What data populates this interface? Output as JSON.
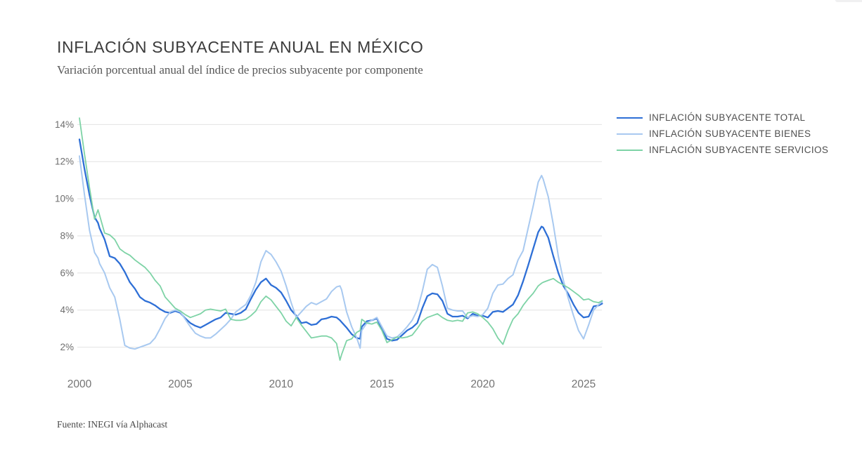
{
  "header": {
    "title": "INFLACIÓN SUBYACENTE ANUAL EN MÉXICO",
    "subtitle": "Variación porcentual anual del índice de precios subyacente por componente"
  },
  "footer": {
    "source": "Fuente: INEGI vía Alphacast"
  },
  "colors": {
    "background": "#ffffff",
    "grid": "#e2e2e2",
    "axis_text": "#6e6e6e"
  },
  "chart_data": {
    "type": "line",
    "title": "INFLACIÓN SUBYACENTE ANUAL EN MÉXICO",
    "xlabel": "",
    "ylabel": "",
    "grid": "horizontal-only",
    "legend_position": "right",
    "xlim": [
      2000,
      2026
    ],
    "ylim": [
      1,
      14.6
    ],
    "y_axis": {
      "ticks": [
        {
          "value": 2,
          "label": "2%"
        },
        {
          "value": 4,
          "label": "4%"
        },
        {
          "value": 6,
          "label": "6%"
        },
        {
          "value": 8,
          "label": "8%"
        },
        {
          "value": 10,
          "label": "10%"
        },
        {
          "value": 12,
          "label": "12%"
        },
        {
          "value": 14,
          "label": "14%"
        }
      ]
    },
    "x_axis": {
      "ticks": [
        {
          "value": 2000,
          "label": "2000"
        },
        {
          "value": 2005,
          "label": "2005"
        },
        {
          "value": 2010,
          "label": "2010"
        },
        {
          "value": 2015,
          "label": "2015"
        },
        {
          "value": 2020,
          "label": "2020"
        },
        {
          "value": 2025,
          "label": "2025"
        }
      ]
    },
    "x_years": [
      2000.0,
      2000.25,
      2000.5,
      2000.75,
      2000.92,
      2001.0,
      2001.25,
      2001.5,
      2001.75,
      2002.0,
      2002.25,
      2002.5,
      2002.75,
      2003.0,
      2003.25,
      2003.5,
      2003.75,
      2004.0,
      2004.25,
      2004.5,
      2004.75,
      2005.0,
      2005.25,
      2005.5,
      2005.75,
      2006.0,
      2006.25,
      2006.5,
      2006.75,
      2007.0,
      2007.25,
      2007.5,
      2007.75,
      2008.0,
      2008.25,
      2008.5,
      2008.75,
      2009.0,
      2009.25,
      2009.5,
      2009.75,
      2010.0,
      2010.25,
      2010.5,
      2010.75,
      2011.0,
      2011.25,
      2011.5,
      2011.75,
      2012.0,
      2012.25,
      2012.5,
      2012.75,
      2012.92,
      2013.0,
      2013.25,
      2013.5,
      2013.75,
      2013.92,
      2014.0,
      2014.25,
      2014.5,
      2014.75,
      2015.0,
      2015.25,
      2015.5,
      2015.75,
      2016.0,
      2016.25,
      2016.5,
      2016.75,
      2017.0,
      2017.25,
      2017.5,
      2017.75,
      2018.0,
      2018.25,
      2018.5,
      2018.75,
      2019.0,
      2019.25,
      2019.5,
      2019.75,
      2020.0,
      2020.25,
      2020.5,
      2020.75,
      2021.0,
      2021.25,
      2021.5,
      2021.75,
      2022.0,
      2022.25,
      2022.5,
      2022.75,
      2022.92,
      2023.0,
      2023.25,
      2023.5,
      2023.75,
      2024.0,
      2024.25,
      2024.5,
      2024.75,
      2025.0,
      2025.25,
      2025.5,
      2025.75,
      2025.92
    ],
    "series": [
      {
        "name": "INFLACIÓN SUBYACENTE TOTAL",
        "color": "#2e6fd6",
        "stroke_width": 2.3,
        "values": [
          13.2,
          11.6,
          10.2,
          9.0,
          8.7,
          8.4,
          7.8,
          6.9,
          6.8,
          6.5,
          6.05,
          5.5,
          5.15,
          4.7,
          4.5,
          4.4,
          4.25,
          4.05,
          3.9,
          3.85,
          3.95,
          3.85,
          3.55,
          3.3,
          3.15,
          3.05,
          3.2,
          3.35,
          3.5,
          3.6,
          3.85,
          3.8,
          3.75,
          3.85,
          4.05,
          4.6,
          5.1,
          5.5,
          5.7,
          5.35,
          5.2,
          4.95,
          4.5,
          4.0,
          3.7,
          3.3,
          3.35,
          3.2,
          3.25,
          3.5,
          3.55,
          3.65,
          3.6,
          3.45,
          3.35,
          3.05,
          2.7,
          2.5,
          2.45,
          3.1,
          3.4,
          3.45,
          3.55,
          3.0,
          2.45,
          2.35,
          2.4,
          2.65,
          2.9,
          3.05,
          3.3,
          4.1,
          4.75,
          4.9,
          4.85,
          4.5,
          3.8,
          3.65,
          3.65,
          3.7,
          3.55,
          3.8,
          3.7,
          3.7,
          3.6,
          3.9,
          3.95,
          3.9,
          4.1,
          4.3,
          4.8,
          5.55,
          6.4,
          7.3,
          8.2,
          8.5,
          8.45,
          7.9,
          6.9,
          6.0,
          5.3,
          4.85,
          4.3,
          3.85,
          3.6,
          3.65,
          4.2,
          4.25,
          4.35
        ]
      },
      {
        "name": "INFLACIÓN SUBYACENTE BIENES",
        "color": "#a8c9f0",
        "stroke_width": 2.0,
        "values": [
          12.3,
          10.2,
          8.3,
          7.1,
          6.8,
          6.5,
          6.0,
          5.2,
          4.7,
          3.5,
          2.1,
          1.95,
          1.9,
          2.0,
          2.1,
          2.2,
          2.5,
          3.0,
          3.55,
          3.9,
          4.0,
          3.9,
          3.5,
          3.1,
          2.75,
          2.6,
          2.5,
          2.5,
          2.7,
          2.95,
          3.2,
          3.5,
          3.9,
          4.1,
          4.3,
          4.8,
          5.5,
          6.6,
          7.2,
          7.0,
          6.6,
          6.1,
          5.3,
          4.4,
          3.6,
          3.9,
          4.2,
          4.4,
          4.3,
          4.45,
          4.6,
          5.0,
          5.25,
          5.3,
          5.1,
          3.9,
          3.1,
          2.5,
          1.95,
          2.9,
          3.3,
          3.45,
          3.6,
          3.1,
          2.6,
          2.5,
          2.55,
          2.8,
          3.1,
          3.45,
          4.0,
          5.0,
          6.2,
          6.45,
          6.3,
          5.3,
          4.1,
          4.0,
          3.95,
          3.95,
          3.6,
          3.7,
          3.65,
          3.75,
          4.1,
          4.9,
          5.35,
          5.4,
          5.7,
          5.9,
          6.7,
          7.2,
          8.4,
          9.6,
          10.9,
          11.25,
          11.05,
          10.1,
          8.6,
          6.9,
          5.6,
          4.6,
          3.7,
          2.9,
          2.45,
          3.2,
          4.0,
          4.3,
          4.45
        ]
      },
      {
        "name": "INFLACIÓN SUBYACENTE SERVICIOS",
        "color": "#7ed3a6",
        "stroke_width": 1.8,
        "values": [
          14.35,
          12.4,
          10.6,
          8.9,
          9.4,
          9.1,
          8.15,
          8.05,
          7.8,
          7.3,
          7.1,
          6.95,
          6.7,
          6.5,
          6.3,
          6.0,
          5.6,
          5.3,
          4.7,
          4.4,
          4.1,
          3.95,
          3.75,
          3.6,
          3.7,
          3.8,
          4.0,
          4.05,
          4.0,
          3.95,
          4.05,
          3.5,
          3.45,
          3.45,
          3.5,
          3.7,
          3.95,
          4.45,
          4.75,
          4.55,
          4.2,
          3.85,
          3.4,
          3.15,
          3.6,
          3.2,
          2.85,
          2.5,
          2.55,
          2.6,
          2.6,
          2.5,
          2.2,
          1.3,
          1.6,
          2.35,
          2.45,
          2.8,
          2.9,
          3.5,
          3.3,
          3.25,
          3.35,
          2.9,
          2.25,
          2.4,
          2.55,
          2.5,
          2.55,
          2.65,
          3.0,
          3.4,
          3.6,
          3.7,
          3.8,
          3.6,
          3.45,
          3.4,
          3.45,
          3.4,
          3.85,
          3.9,
          3.8,
          3.6,
          3.35,
          3.0,
          2.5,
          2.15,
          2.9,
          3.5,
          3.8,
          4.25,
          4.6,
          4.9,
          5.3,
          5.45,
          5.5,
          5.6,
          5.7,
          5.5,
          5.35,
          5.2,
          5.0,
          4.8,
          4.55,
          4.6,
          4.45,
          4.4,
          4.5
        ]
      }
    ]
  }
}
